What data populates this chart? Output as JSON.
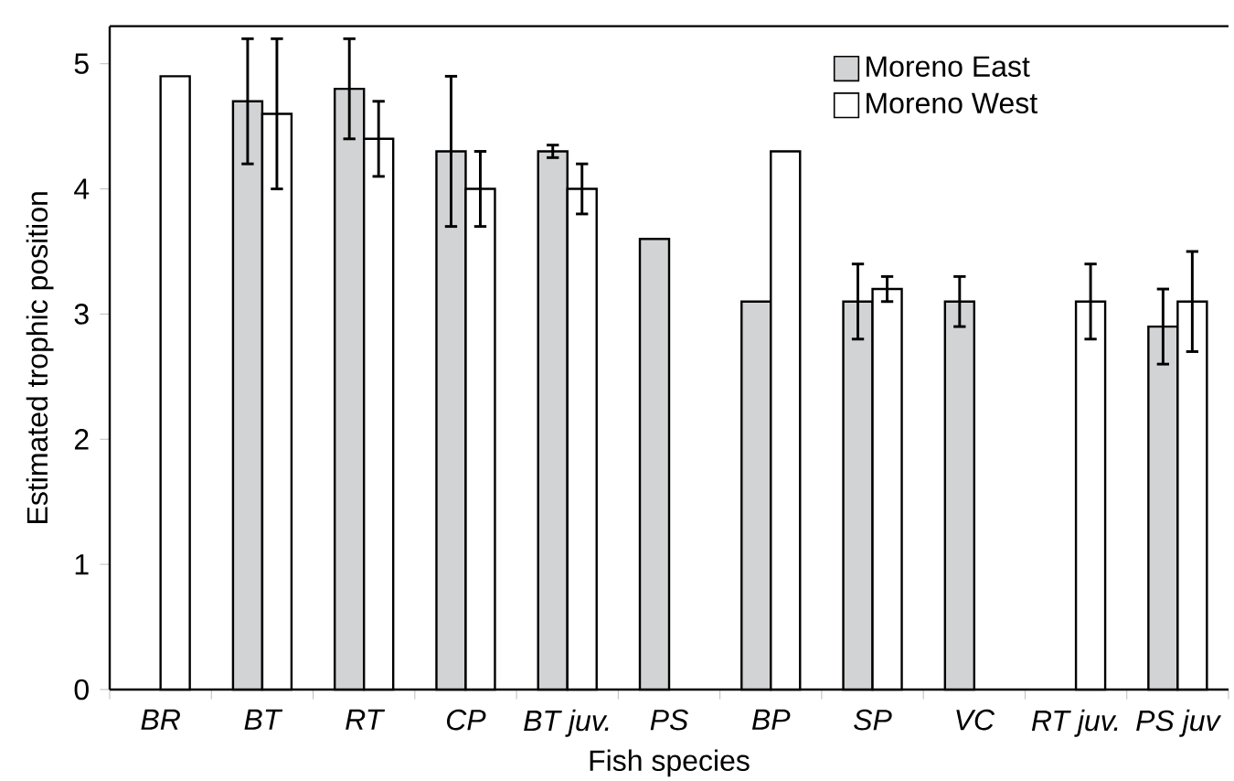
{
  "chart_data": {
    "type": "bar",
    "xlabel": "Fish species",
    "ylabel": "Estimated trophic position",
    "categories": [
      "BR",
      "BT",
      "RT",
      "CP",
      "BT juv.",
      "PS",
      "BP",
      "SP",
      "VC",
      "RT juv.",
      "PS juv"
    ],
    "series": [
      {
        "name": "Moreno East",
        "color": "#d1d3d4",
        "values": [
          null,
          4.7,
          4.8,
          4.3,
          4.3,
          3.6,
          3.1,
          3.1,
          3.1,
          null,
          2.9
        ],
        "errors": [
          null,
          0.5,
          0.4,
          0.6,
          0.05,
          null,
          null,
          0.3,
          0.2,
          null,
          0.3
        ]
      },
      {
        "name": "Moreno West",
        "color": "#ffffff",
        "values": [
          4.9,
          4.6,
          4.4,
          4.0,
          4.0,
          null,
          4.3,
          3.2,
          null,
          3.1,
          3.1
        ],
        "errors": [
          null,
          0.6,
          0.3,
          0.3,
          0.2,
          null,
          null,
          0.1,
          null,
          0.3,
          0.4
        ]
      }
    ],
    "ylim": [
      0,
      5.3
    ],
    "yticks": [
      0,
      1,
      2,
      3,
      4,
      5
    ],
    "grid": false,
    "legend": "top right"
  }
}
